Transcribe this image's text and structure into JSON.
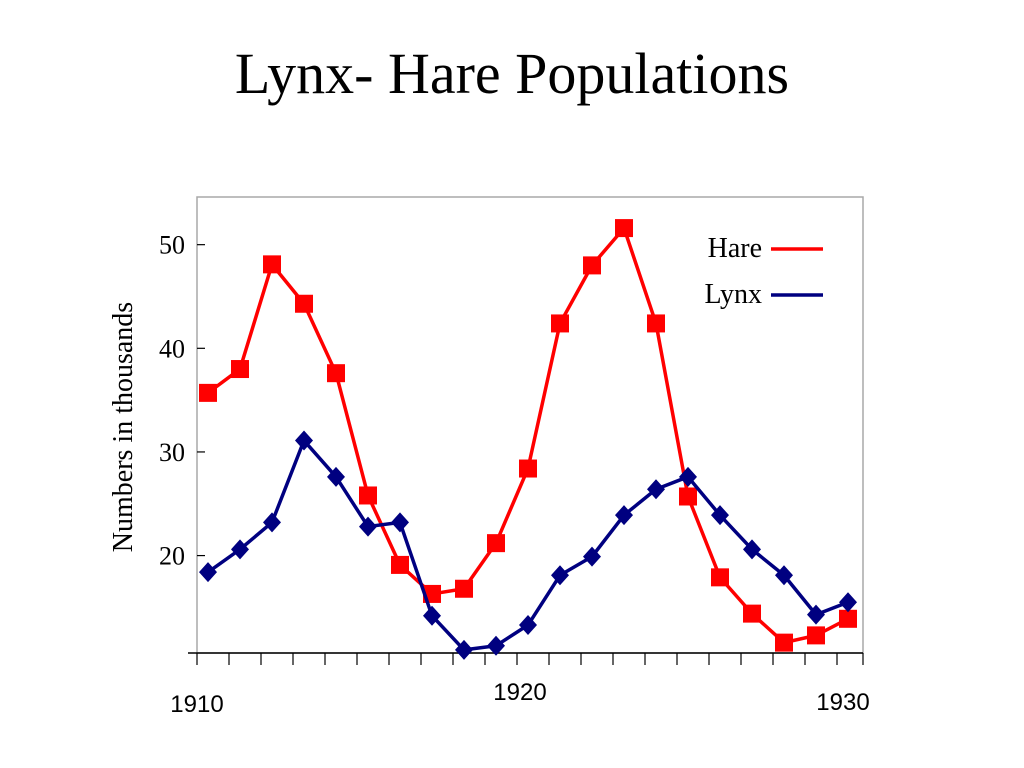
{
  "slide": {
    "title": "Lynx- Hare Populations"
  },
  "chart_data": {
    "type": "line",
    "title": "",
    "xlabel": "",
    "ylabel": "Numbers in thousands",
    "x": [
      1910,
      1911,
      1912,
      1913,
      1914,
      1915,
      1916,
      1917,
      1918,
      1919,
      1920,
      1921,
      1922,
      1923,
      1924,
      1925,
      1926,
      1927,
      1928,
      1929,
      1930
    ],
    "x_tick_labels": [
      "1910",
      "1920",
      "1930"
    ],
    "x_ticks": [
      1910,
      1920,
      1930
    ],
    "y_ticks": [
      20,
      30,
      40,
      50
    ],
    "y_tick_labels": [
      "20",
      "30",
      "40",
      "50"
    ],
    "xlim": [
      1910,
      1930
    ],
    "ylim": [
      10.6,
      54.6
    ],
    "grid": false,
    "legend_position": "top-right",
    "series": [
      {
        "name": "Hare",
        "color": "#ff0000",
        "marker": "square",
        "values": [
          35.7,
          38.0,
          48.1,
          44.3,
          37.6,
          25.8,
          19.1,
          16.3,
          16.8,
          21.2,
          28.4,
          42.4,
          48.0,
          51.6,
          42.4,
          25.7,
          17.9,
          14.4,
          11.6,
          12.3,
          13.9
        ]
      },
      {
        "name": "Lynx",
        "color": "#000080",
        "marker": "diamond",
        "values": [
          18.4,
          20.6,
          23.2,
          31.1,
          27.6,
          22.8,
          23.2,
          14.2,
          10.9,
          11.3,
          13.3,
          18.1,
          19.9,
          23.9,
          26.4,
          27.6,
          23.9,
          20.6,
          18.1,
          14.3,
          15.5
        ]
      }
    ]
  }
}
